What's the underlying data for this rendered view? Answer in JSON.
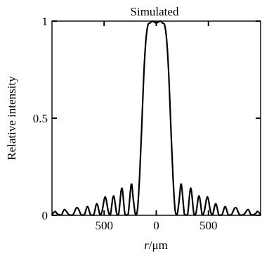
{
  "chart_data": {
    "type": "line",
    "title": "Simulated",
    "xlabel": {
      "symbol": "r",
      "unit": "/μm"
    },
    "ylabel": "Relative intensity",
    "xlim": [
      -1000,
      1000
    ],
    "ylim": [
      0,
      1
    ],
    "x_ticks": [
      {
        "value": -500,
        "label": "500"
      },
      {
        "value": 0,
        "label": "0"
      },
      {
        "value": 500,
        "label": "500"
      }
    ],
    "y_ticks": [
      {
        "value": 0,
        "label": "0"
      },
      {
        "value": 0.5,
        "label": "0.5"
      },
      {
        "value": 1,
        "label": "1"
      }
    ],
    "grid": false,
    "line_color": "#000000",
    "series": [
      {
        "x": [
          -1000,
          -970,
          -950,
          -910,
          -880,
          -840,
          -800,
          -760,
          -720,
          -690,
          -660,
          -630,
          -600,
          -570,
          -540,
          -520,
          -490,
          -460,
          -440,
          -410,
          -380,
          -360,
          -330,
          -300,
          -270,
          -240,
          -220,
          -200,
          -180,
          -160,
          -140,
          -120,
          -100,
          -80,
          -60,
          -40,
          -20,
          0,
          20,
          40,
          60,
          80,
          100,
          120,
          140,
          160,
          180,
          200,
          220,
          240,
          270,
          300,
          330,
          360,
          380,
          410,
          440,
          460,
          490,
          520,
          540,
          570,
          600,
          630,
          660,
          690,
          720,
          760,
          800,
          840,
          880,
          910,
          950,
          970,
          1000
        ],
        "y": [
          0.005,
          0.02,
          0.008,
          0.002,
          0.03,
          0.005,
          0.002,
          0.04,
          0.003,
          0.003,
          0.045,
          0.003,
          0.002,
          0.06,
          0.003,
          0.02,
          0.095,
          0.02,
          0.003,
          0.1,
          0.01,
          0.008,
          0.14,
          0.005,
          0.005,
          0.16,
          0.08,
          0.005,
          0.03,
          0.2,
          0.45,
          0.72,
          0.9,
          0.98,
          0.99,
          1.0,
          0.995,
          0.99,
          0.995,
          1.0,
          0.99,
          0.98,
          0.9,
          0.72,
          0.45,
          0.2,
          0.03,
          0.005,
          0.08,
          0.16,
          0.005,
          0.005,
          0.14,
          0.008,
          0.01,
          0.1,
          0.003,
          0.02,
          0.095,
          0.02,
          0.003,
          0.06,
          0.002,
          0.003,
          0.045,
          0.003,
          0.003,
          0.04,
          0.002,
          0.005,
          0.03,
          0.002,
          0.008,
          0.02,
          0.005
        ]
      }
    ]
  }
}
